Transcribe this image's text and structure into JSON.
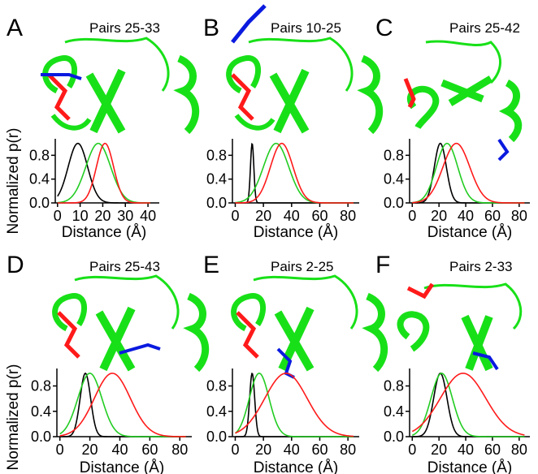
{
  "figure": {
    "ylabel": "Normalized p(r)",
    "xlabel": "Distance (Å)",
    "colors": {
      "red": "#ff1a1a",
      "green": "#22cc22",
      "black": "#000000",
      "blue": "#0a1adf",
      "protein": "#18e018"
    }
  },
  "chart_data": [
    {
      "panel": "A",
      "title": "Pairs 25-33",
      "type": "line",
      "xticks": [
        "0",
        "10",
        "20",
        "30",
        "40"
      ],
      "yticks": [
        "0.0",
        "0.4",
        "0.8"
      ],
      "xlim": [
        -1,
        45
      ],
      "ylim": [
        0,
        1.05
      ],
      "series": [
        {
          "color": "black",
          "mean": 9,
          "sd": 4.3
        },
        {
          "color": "green",
          "mean": 18,
          "sd": 5.5
        },
        {
          "color": "red",
          "mean": 21,
          "sd": 3.8
        }
      ]
    },
    {
      "panel": "B",
      "title": "Pairs 10-25",
      "type": "line",
      "xticks": [
        "0",
        "20",
        "40",
        "60",
        "80"
      ],
      "yticks": [
        "0.0",
        "0.4",
        "0.8"
      ],
      "xlim": [
        -2,
        88
      ],
      "ylim": [
        0,
        1.05
      ],
      "series": [
        {
          "color": "black",
          "mean": 12,
          "sd": 1.2
        },
        {
          "color": "green",
          "mean": 29,
          "sd": 9
        },
        {
          "color": "red",
          "mean": 33,
          "sd": 8
        }
      ]
    },
    {
      "panel": "C",
      "title": "Pairs 25-42",
      "type": "line",
      "xticks": [
        "0",
        "20",
        "40",
        "60",
        "80"
      ],
      "yticks": [
        "0.0",
        "0.4",
        "0.8"
      ],
      "xlim": [
        -2,
        88
      ],
      "ylim": [
        0,
        1.05
      ],
      "series": [
        {
          "color": "black",
          "mean": 21,
          "sd": 4.5
        },
        {
          "color": "green",
          "mean": 26,
          "sd": 8
        },
        {
          "color": "red",
          "mean": 33,
          "sd": 10
        }
      ]
    },
    {
      "panel": "D",
      "title": "Pairs 25-43",
      "type": "line",
      "xticks": [
        "0",
        "20",
        "40",
        "60",
        "80"
      ],
      "yticks": [
        "0.0",
        "0.4",
        "0.8"
      ],
      "xlim": [
        -2,
        88
      ],
      "ylim": [
        0,
        1.05
      ],
      "series": [
        {
          "color": "black",
          "mean": 17,
          "sd": 3.5
        },
        {
          "color": "green",
          "mean": 20,
          "sd": 8
        },
        {
          "color": "red",
          "mean": 35,
          "sd": 12
        }
      ]
    },
    {
      "panel": "E",
      "title": "Pairs 2-25",
      "type": "line",
      "xticks": [
        "0",
        "20",
        "40",
        "60",
        "80"
      ],
      "yticks": [
        "0.0",
        "0.4",
        "0.8"
      ],
      "xlim": [
        -2,
        88
      ],
      "ylim": [
        0,
        1.05
      ],
      "series": [
        {
          "color": "black",
          "mean": 12,
          "sd": 1.8
        },
        {
          "color": "green",
          "mean": 17,
          "sd": 7
        },
        {
          "color": "red",
          "mean": 36,
          "sd": 15
        }
      ]
    },
    {
      "panel": "F",
      "title": "Pairs 2-33",
      "type": "line",
      "xticks": [
        "0",
        "20",
        "40",
        "60",
        "80"
      ],
      "yticks": [
        "0.0",
        "0.4",
        "0.8"
      ],
      "xlim": [
        -2,
        88
      ],
      "ylim": [
        0,
        1.05
      ],
      "series": [
        {
          "color": "black",
          "mean": 21,
          "sd": 5
        },
        {
          "color": "green",
          "mean": 22,
          "sd": 8
        },
        {
          "color": "red",
          "mean": 38,
          "sd": 17
        }
      ]
    }
  ]
}
